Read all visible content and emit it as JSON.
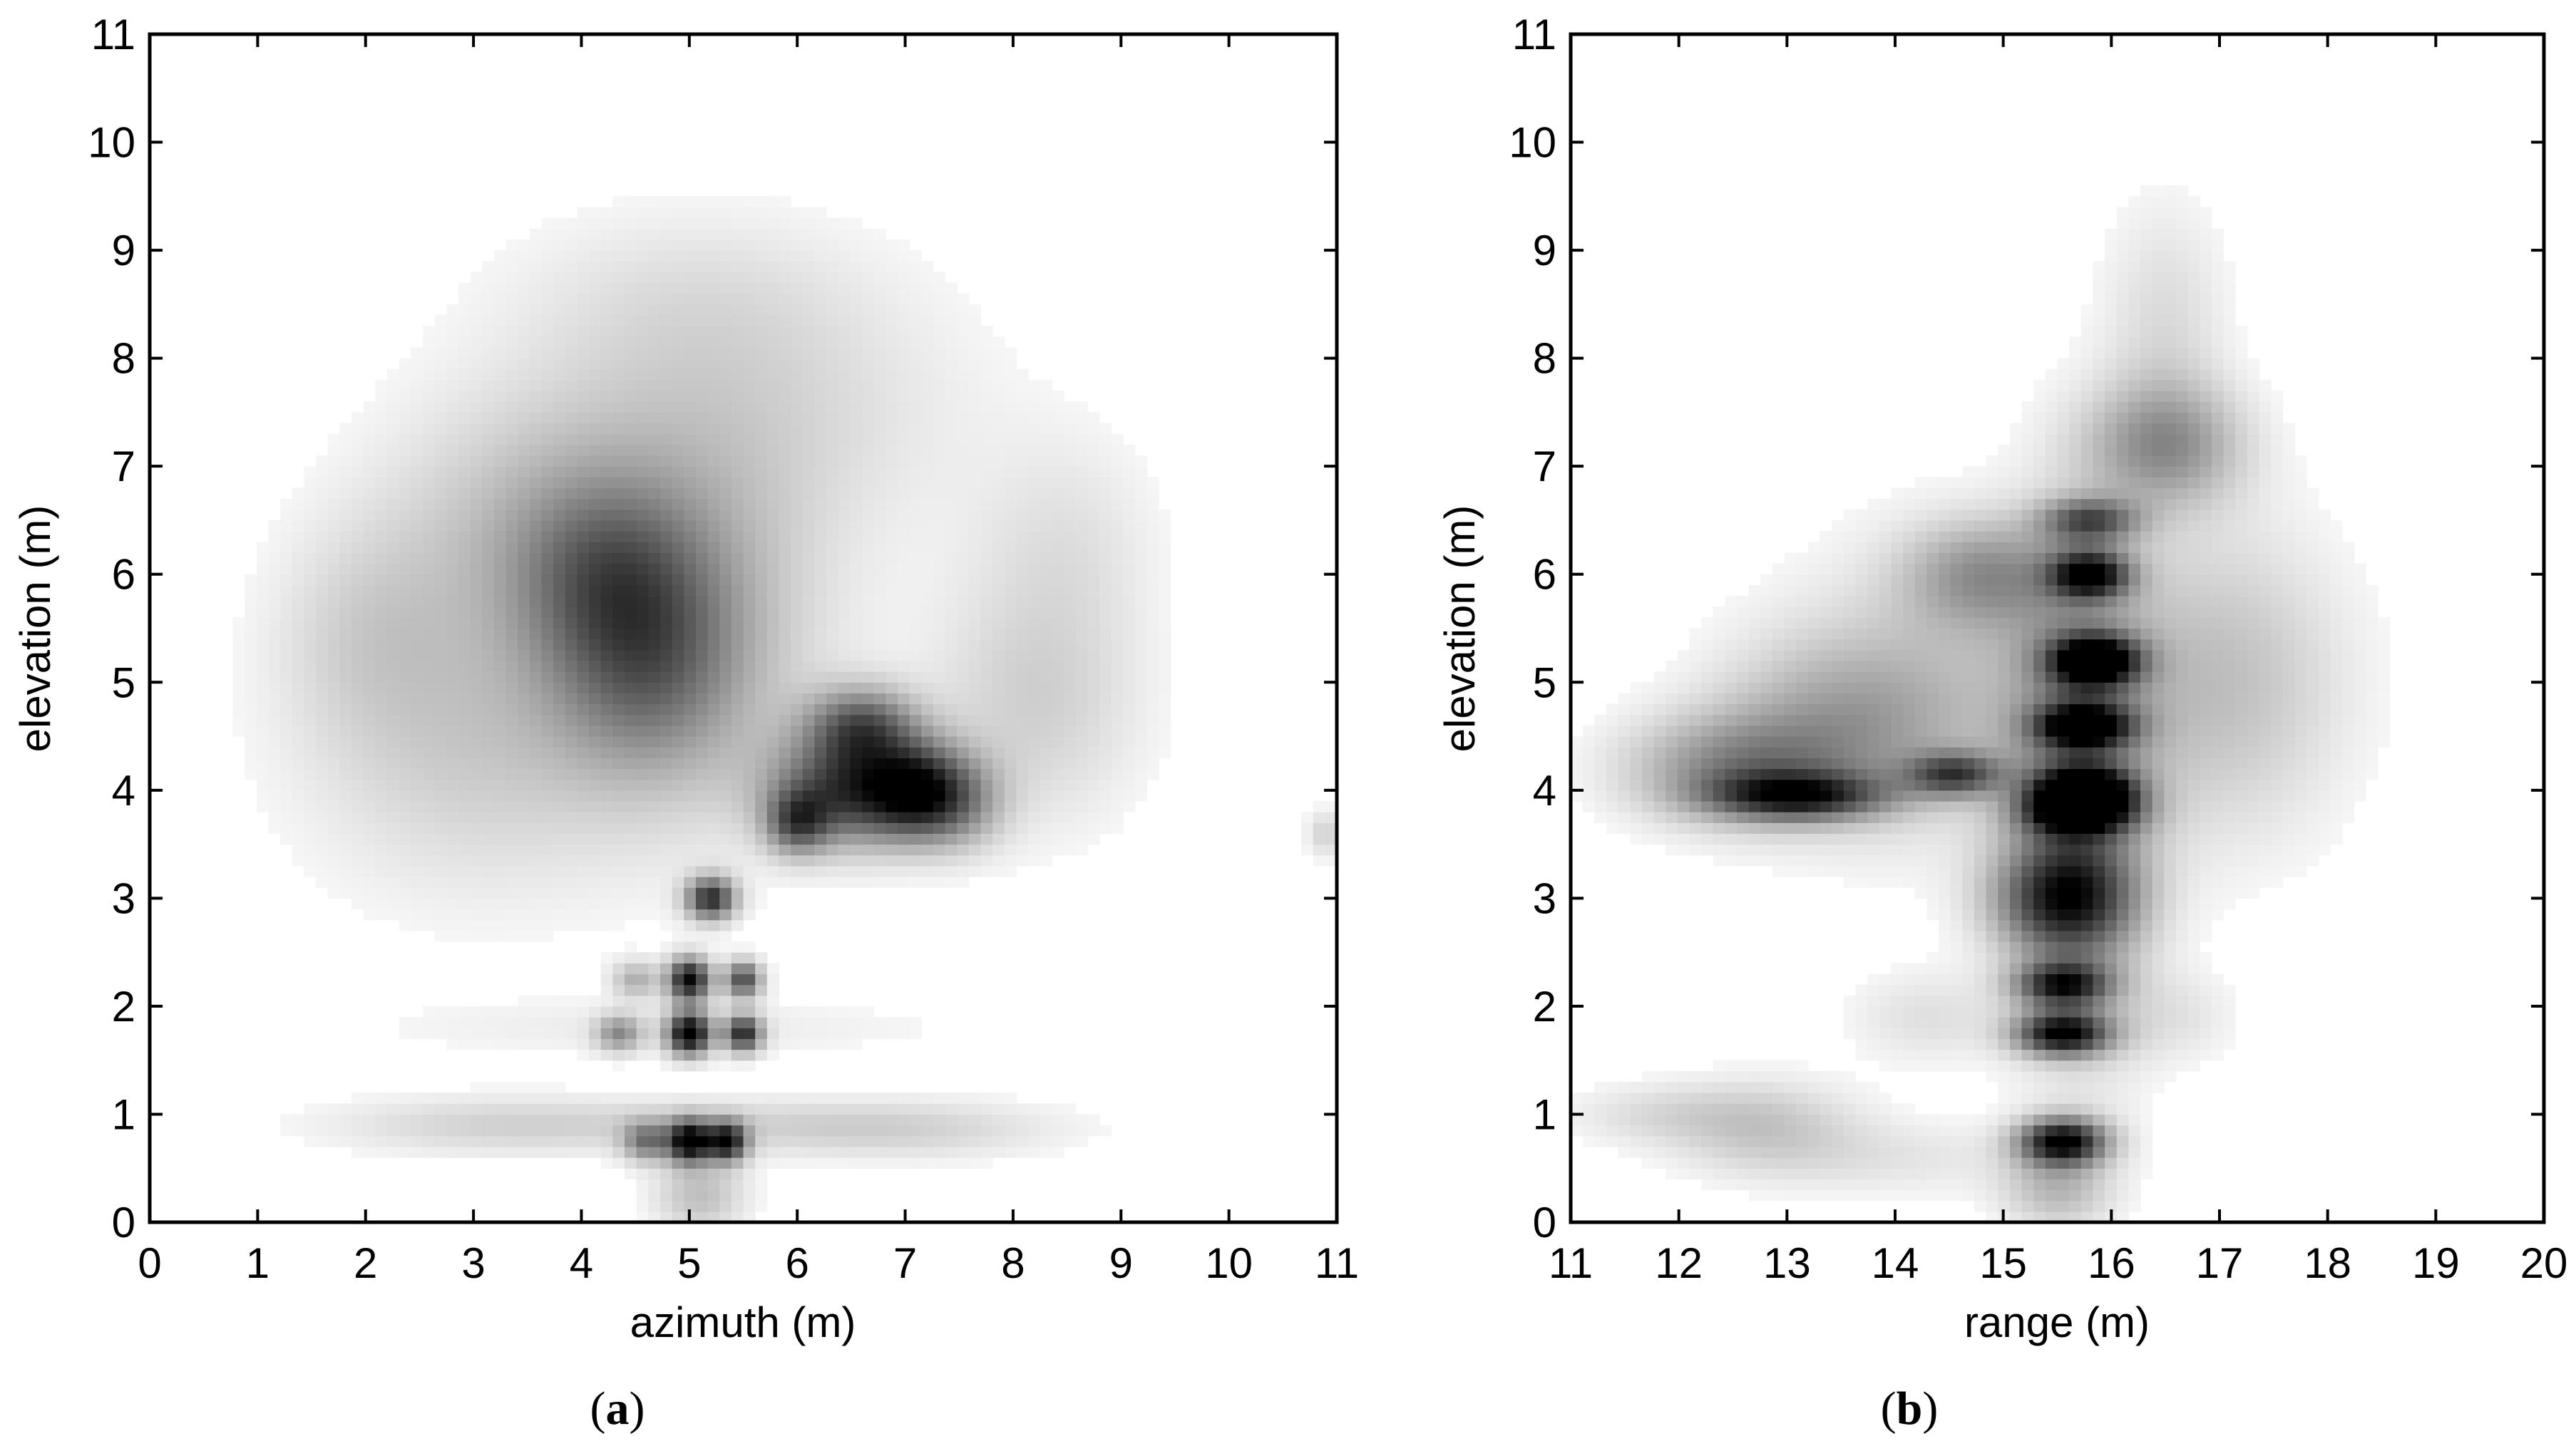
{
  "colors": {
    "background": "#ffffff",
    "axes": "#000000",
    "intensity_map": "grayscale-inverted"
  },
  "chart_data": [
    {
      "type": "heatmap",
      "panel_label": "a",
      "title": "",
      "xlabel": "azimuth (m)",
      "ylabel": "elevation (m)",
      "xlim": [
        0,
        11
      ],
      "ylim": [
        0,
        11
      ],
      "xticks": [
        0,
        1,
        2,
        3,
        4,
        5,
        6,
        7,
        8,
        9,
        10,
        11
      ],
      "yticks": [
        0,
        1,
        2,
        3,
        4,
        5,
        6,
        7,
        8,
        9,
        10,
        11
      ],
      "grid": false,
      "intensity_scale": "0 = white, 1 = black",
      "blobs": [
        {
          "x": 5.0,
          "y": 2.25,
          "sx": 0.14,
          "sy": 0.14,
          "v": 0.95
        },
        {
          "x": 5.5,
          "y": 2.25,
          "sx": 0.12,
          "sy": 0.12,
          "v": 0.7
        },
        {
          "x": 5.0,
          "y": 1.75,
          "sx": 0.14,
          "sy": 0.14,
          "v": 1.0
        },
        {
          "x": 5.5,
          "y": 1.75,
          "sx": 0.12,
          "sy": 0.12,
          "v": 0.8
        },
        {
          "x": 4.35,
          "y": 1.75,
          "sx": 0.15,
          "sy": 0.12,
          "v": 0.4
        },
        {
          "x": 4.5,
          "y": 2.25,
          "sx": 0.15,
          "sy": 0.12,
          "v": 0.3
        },
        {
          "x": 5.0,
          "y": 0.75,
          "sx": 0.14,
          "sy": 0.14,
          "v": 0.95
        },
        {
          "x": 5.35,
          "y": 0.75,
          "sx": 0.13,
          "sy": 0.13,
          "v": 0.85
        },
        {
          "x": 4.6,
          "y": 0.75,
          "sx": 0.15,
          "sy": 0.13,
          "v": 0.45
        },
        {
          "x": 5.2,
          "y": 3.0,
          "sx": 0.16,
          "sy": 0.14,
          "v": 0.8
        },
        {
          "x": 6.5,
          "y": 4.0,
          "sx": 0.5,
          "sy": 0.35,
          "v": 0.75
        },
        {
          "x": 6.0,
          "y": 3.7,
          "sx": 0.2,
          "sy": 0.2,
          "v": 0.5
        },
        {
          "x": 6.6,
          "y": 4.6,
          "sx": 0.35,
          "sy": 0.25,
          "v": 0.55
        },
        {
          "x": 7.1,
          "y": 4.0,
          "sx": 0.3,
          "sy": 0.3,
          "v": 0.6
        },
        {
          "x": 7.5,
          "y": 3.9,
          "sx": 0.3,
          "sy": 0.3,
          "v": 0.35
        },
        {
          "x": 4.6,
          "y": 5.2,
          "sx": 0.6,
          "sy": 0.7,
          "v": 0.35
        },
        {
          "x": 4.2,
          "y": 6.0,
          "sx": 0.6,
          "sy": 0.6,
          "v": 0.3
        },
        {
          "x": 5.0,
          "y": 5.5,
          "sx": 0.9,
          "sy": 1.2,
          "v": 0.25
        },
        {
          "x": 3.0,
          "y": 4.5,
          "sx": 1.1,
          "sy": 1.0,
          "v": 0.2
        },
        {
          "x": 3.5,
          "y": 6.5,
          "sx": 1.0,
          "sy": 0.8,
          "v": 0.18
        },
        {
          "x": 5.5,
          "y": 7.5,
          "sx": 1.5,
          "sy": 0.9,
          "v": 0.14
        },
        {
          "x": 8.2,
          "y": 4.8,
          "sx": 0.7,
          "sy": 0.8,
          "v": 0.18
        },
        {
          "x": 8.5,
          "y": 6.3,
          "sx": 0.6,
          "sy": 0.7,
          "v": 0.1
        },
        {
          "x": 2.0,
          "y": 5.5,
          "sx": 0.6,
          "sy": 0.7,
          "v": 0.12
        },
        {
          "x": 5.0,
          "y": 8.6,
          "sx": 1.2,
          "sy": 0.6,
          "v": 0.08
        },
        {
          "x": 10.9,
          "y": 3.6,
          "sx": 0.12,
          "sy": 0.15,
          "v": 0.18
        },
        {
          "x": 5.0,
          "y": 0.9,
          "sx": 1.8,
          "sy": 0.18,
          "v": 0.14
        },
        {
          "x": 7.0,
          "y": 0.85,
          "sx": 1.0,
          "sy": 0.2,
          "v": 0.12
        },
        {
          "x": 3.0,
          "y": 0.9,
          "sx": 1.0,
          "sy": 0.2,
          "v": 0.1
        },
        {
          "x": 4.8,
          "y": 1.8,
          "sx": 2.0,
          "sy": 0.2,
          "v": 0.07
        },
        {
          "x": 5.1,
          "y": 0.25,
          "sx": 0.3,
          "sy": 0.25,
          "v": 0.25
        }
      ]
    },
    {
      "type": "heatmap",
      "panel_label": "b",
      "title": "",
      "xlabel": "range (m)",
      "ylabel": "elevation (m)",
      "xlim": [
        11,
        20
      ],
      "ylim": [
        0,
        11
      ],
      "xticks": [
        11,
        12,
        13,
        14,
        15,
        16,
        17,
        18,
        19,
        20
      ],
      "yticks": [
        0,
        1,
        2,
        3,
        4,
        5,
        6,
        7,
        8,
        9,
        10,
        11
      ],
      "grid": false,
      "intensity_scale": "0 = white, 1 = black",
      "blobs": [
        {
          "x": 15.55,
          "y": 0.75,
          "sx": 0.28,
          "sy": 0.15,
          "v": 0.95
        },
        {
          "x": 15.55,
          "y": 1.75,
          "sx": 0.3,
          "sy": 0.14,
          "v": 0.9
        },
        {
          "x": 15.55,
          "y": 2.2,
          "sx": 0.3,
          "sy": 0.14,
          "v": 0.75
        },
        {
          "x": 15.55,
          "y": 3.0,
          "sx": 0.45,
          "sy": 0.35,
          "v": 0.65
        },
        {
          "x": 15.7,
          "y": 3.8,
          "sx": 0.35,
          "sy": 0.15,
          "v": 0.8
        },
        {
          "x": 15.75,
          "y": 4.0,
          "sx": 0.3,
          "sy": 0.15,
          "v": 0.95
        },
        {
          "x": 15.75,
          "y": 4.6,
          "sx": 0.3,
          "sy": 0.14,
          "v": 0.85
        },
        {
          "x": 15.85,
          "y": 5.2,
          "sx": 0.28,
          "sy": 0.16,
          "v": 1.0
        },
        {
          "x": 15.8,
          "y": 6.0,
          "sx": 0.25,
          "sy": 0.15,
          "v": 0.85
        },
        {
          "x": 15.8,
          "y": 6.5,
          "sx": 0.3,
          "sy": 0.14,
          "v": 0.55
        },
        {
          "x": 15.7,
          "y": 4.0,
          "sx": 0.45,
          "sy": 1.6,
          "v": 0.45
        },
        {
          "x": 13.1,
          "y": 3.95,
          "sx": 0.55,
          "sy": 0.15,
          "v": 0.7
        },
        {
          "x": 14.55,
          "y": 4.15,
          "sx": 0.3,
          "sy": 0.14,
          "v": 0.6
        },
        {
          "x": 12.5,
          "y": 4.2,
          "sx": 0.7,
          "sy": 0.35,
          "v": 0.4
        },
        {
          "x": 13.5,
          "y": 4.6,
          "sx": 0.8,
          "sy": 0.6,
          "v": 0.3
        },
        {
          "x": 14.8,
          "y": 6.0,
          "sx": 0.5,
          "sy": 0.35,
          "v": 0.35
        },
        {
          "x": 16.5,
          "y": 7.2,
          "sx": 0.5,
          "sy": 0.4,
          "v": 0.4
        },
        {
          "x": 17.0,
          "y": 5.0,
          "sx": 0.8,
          "sy": 1.0,
          "v": 0.25
        },
        {
          "x": 16.5,
          "y": 8.3,
          "sx": 0.4,
          "sy": 0.8,
          "v": 0.14
        },
        {
          "x": 12.8,
          "y": 0.9,
          "sx": 0.6,
          "sy": 0.3,
          "v": 0.2
        },
        {
          "x": 11.8,
          "y": 1.0,
          "sx": 0.6,
          "sy": 0.2,
          "v": 0.12
        },
        {
          "x": 14.3,
          "y": 1.9,
          "sx": 0.5,
          "sy": 0.3,
          "v": 0.12
        },
        {
          "x": 16.6,
          "y": 1.9,
          "sx": 0.4,
          "sy": 0.3,
          "v": 0.1
        },
        {
          "x": 15.5,
          "y": 0.3,
          "sx": 0.35,
          "sy": 0.25,
          "v": 0.25
        },
        {
          "x": 14.0,
          "y": 0.6,
          "sx": 1.0,
          "sy": 0.25,
          "v": 0.1
        },
        {
          "x": 14.5,
          "y": 5.0,
          "sx": 1.0,
          "sy": 1.0,
          "v": 0.15
        }
      ]
    }
  ]
}
